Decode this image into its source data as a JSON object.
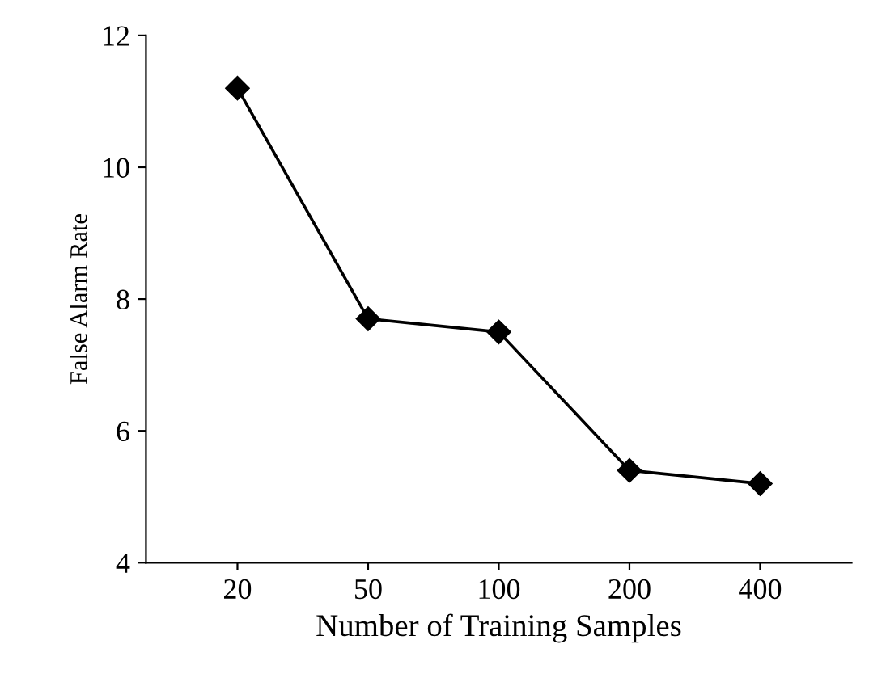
{
  "chart_data": {
    "type": "line",
    "xlabel": "Number of Training Samples",
    "ylabel": "False Alarm Rate",
    "categories": [
      "20",
      "50",
      "100",
      "200",
      "400"
    ],
    "series": [
      {
        "color": "#000000",
        "values": [
          11.2,
          7.7,
          7.5,
          5.4,
          5.2
        ]
      }
    ],
    "ylim": [
      4,
      12
    ],
    "yticks": [
      4,
      6,
      8,
      10,
      12
    ],
    "marker": "diamond",
    "line_style": "solid",
    "grid": false,
    "legend": false
  }
}
